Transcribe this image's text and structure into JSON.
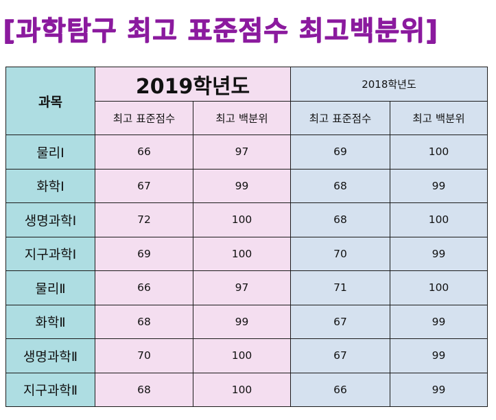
{
  "title": "[과학탐구 최고 표준점수 최고백분위]",
  "table": {
    "subject_header": "과목",
    "year_2019": "2019학년도",
    "year_2018": "2018학년도",
    "sub_headers": [
      "최고 표준점수",
      "최고 백분위",
      "최고 표준점수",
      "최고 백분위"
    ],
    "rows": [
      {
        "subject": "물리Ⅰ",
        "std_2019": "66",
        "pct_2019": "97",
        "std_2018": "69",
        "pct_2018": "100"
      },
      {
        "subject": "화학Ⅰ",
        "std_2019": "67",
        "pct_2019": "99",
        "std_2018": "68",
        "pct_2018": "99"
      },
      {
        "subject": "생명과학Ⅰ",
        "std_2019": "72",
        "pct_2019": "100",
        "std_2018": "68",
        "pct_2018": "100"
      },
      {
        "subject": "지구과학Ⅰ",
        "std_2019": "69",
        "pct_2019": "100",
        "std_2018": "70",
        "pct_2018": "99"
      },
      {
        "subject": "물리Ⅱ",
        "std_2019": "66",
        "pct_2019": "97",
        "std_2018": "71",
        "pct_2018": "100"
      },
      {
        "subject": "화학Ⅱ",
        "std_2019": "68",
        "pct_2019": "99",
        "std_2018": "67",
        "pct_2018": "99"
      },
      {
        "subject": "생명과학Ⅱ",
        "std_2019": "70",
        "pct_2019": "100",
        "std_2018": "67",
        "pct_2018": "99"
      },
      {
        "subject": "지구과학Ⅱ",
        "std_2019": "68",
        "pct_2019": "100",
        "std_2018": "66",
        "pct_2018": "99"
      }
    ]
  },
  "colors": {
    "title": "#8b1a9e",
    "subject_column": "#aedde2",
    "year_2019_block": "#f4def0",
    "year_2018_block": "#d5e1ef"
  }
}
